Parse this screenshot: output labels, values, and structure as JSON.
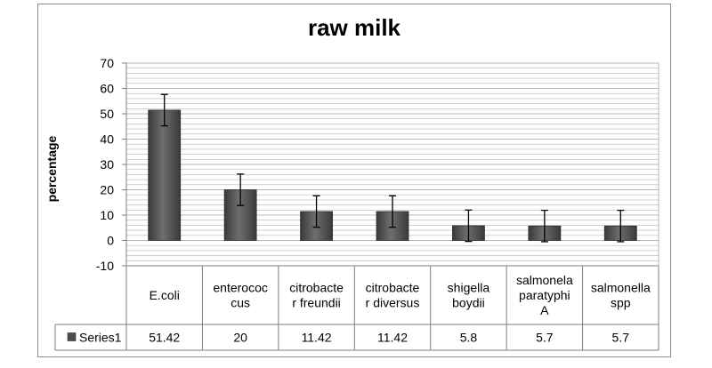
{
  "chart_data": {
    "type": "bar",
    "title": "raw milk",
    "ylabel": "percentage",
    "xlabel": "",
    "ylim": [
      -10,
      70
    ],
    "yticks": [
      -10,
      0,
      10,
      20,
      30,
      40,
      50,
      60,
      70
    ],
    "categories": [
      [
        "E.coli"
      ],
      [
        "enterococ",
        "cus"
      ],
      [
        "citrobacte",
        "r freundii"
      ],
      [
        "citrobacte",
        "r diversus"
      ],
      [
        "shigella",
        "boydii"
      ],
      [
        "salmonela",
        "paratyphi",
        "A"
      ],
      [
        "salmonella",
        "spp"
      ]
    ],
    "series": [
      {
        "name": "Series1",
        "values": [
          51.42,
          20,
          11.42,
          11.42,
          5.8,
          5.7,
          5.7
        ],
        "value_labels": [
          "51.42",
          "20",
          "11.42",
          "11.42",
          "5.8",
          "5.7",
          "5.7"
        ],
        "error": 6.2
      }
    ],
    "grid": true,
    "legend": "data-table",
    "colors": {
      "bar": "#4d4d4d",
      "bar_highlight": "#8a8a8a",
      "grid": "#b5b5b5",
      "axis": "#7f7f7f"
    }
  }
}
